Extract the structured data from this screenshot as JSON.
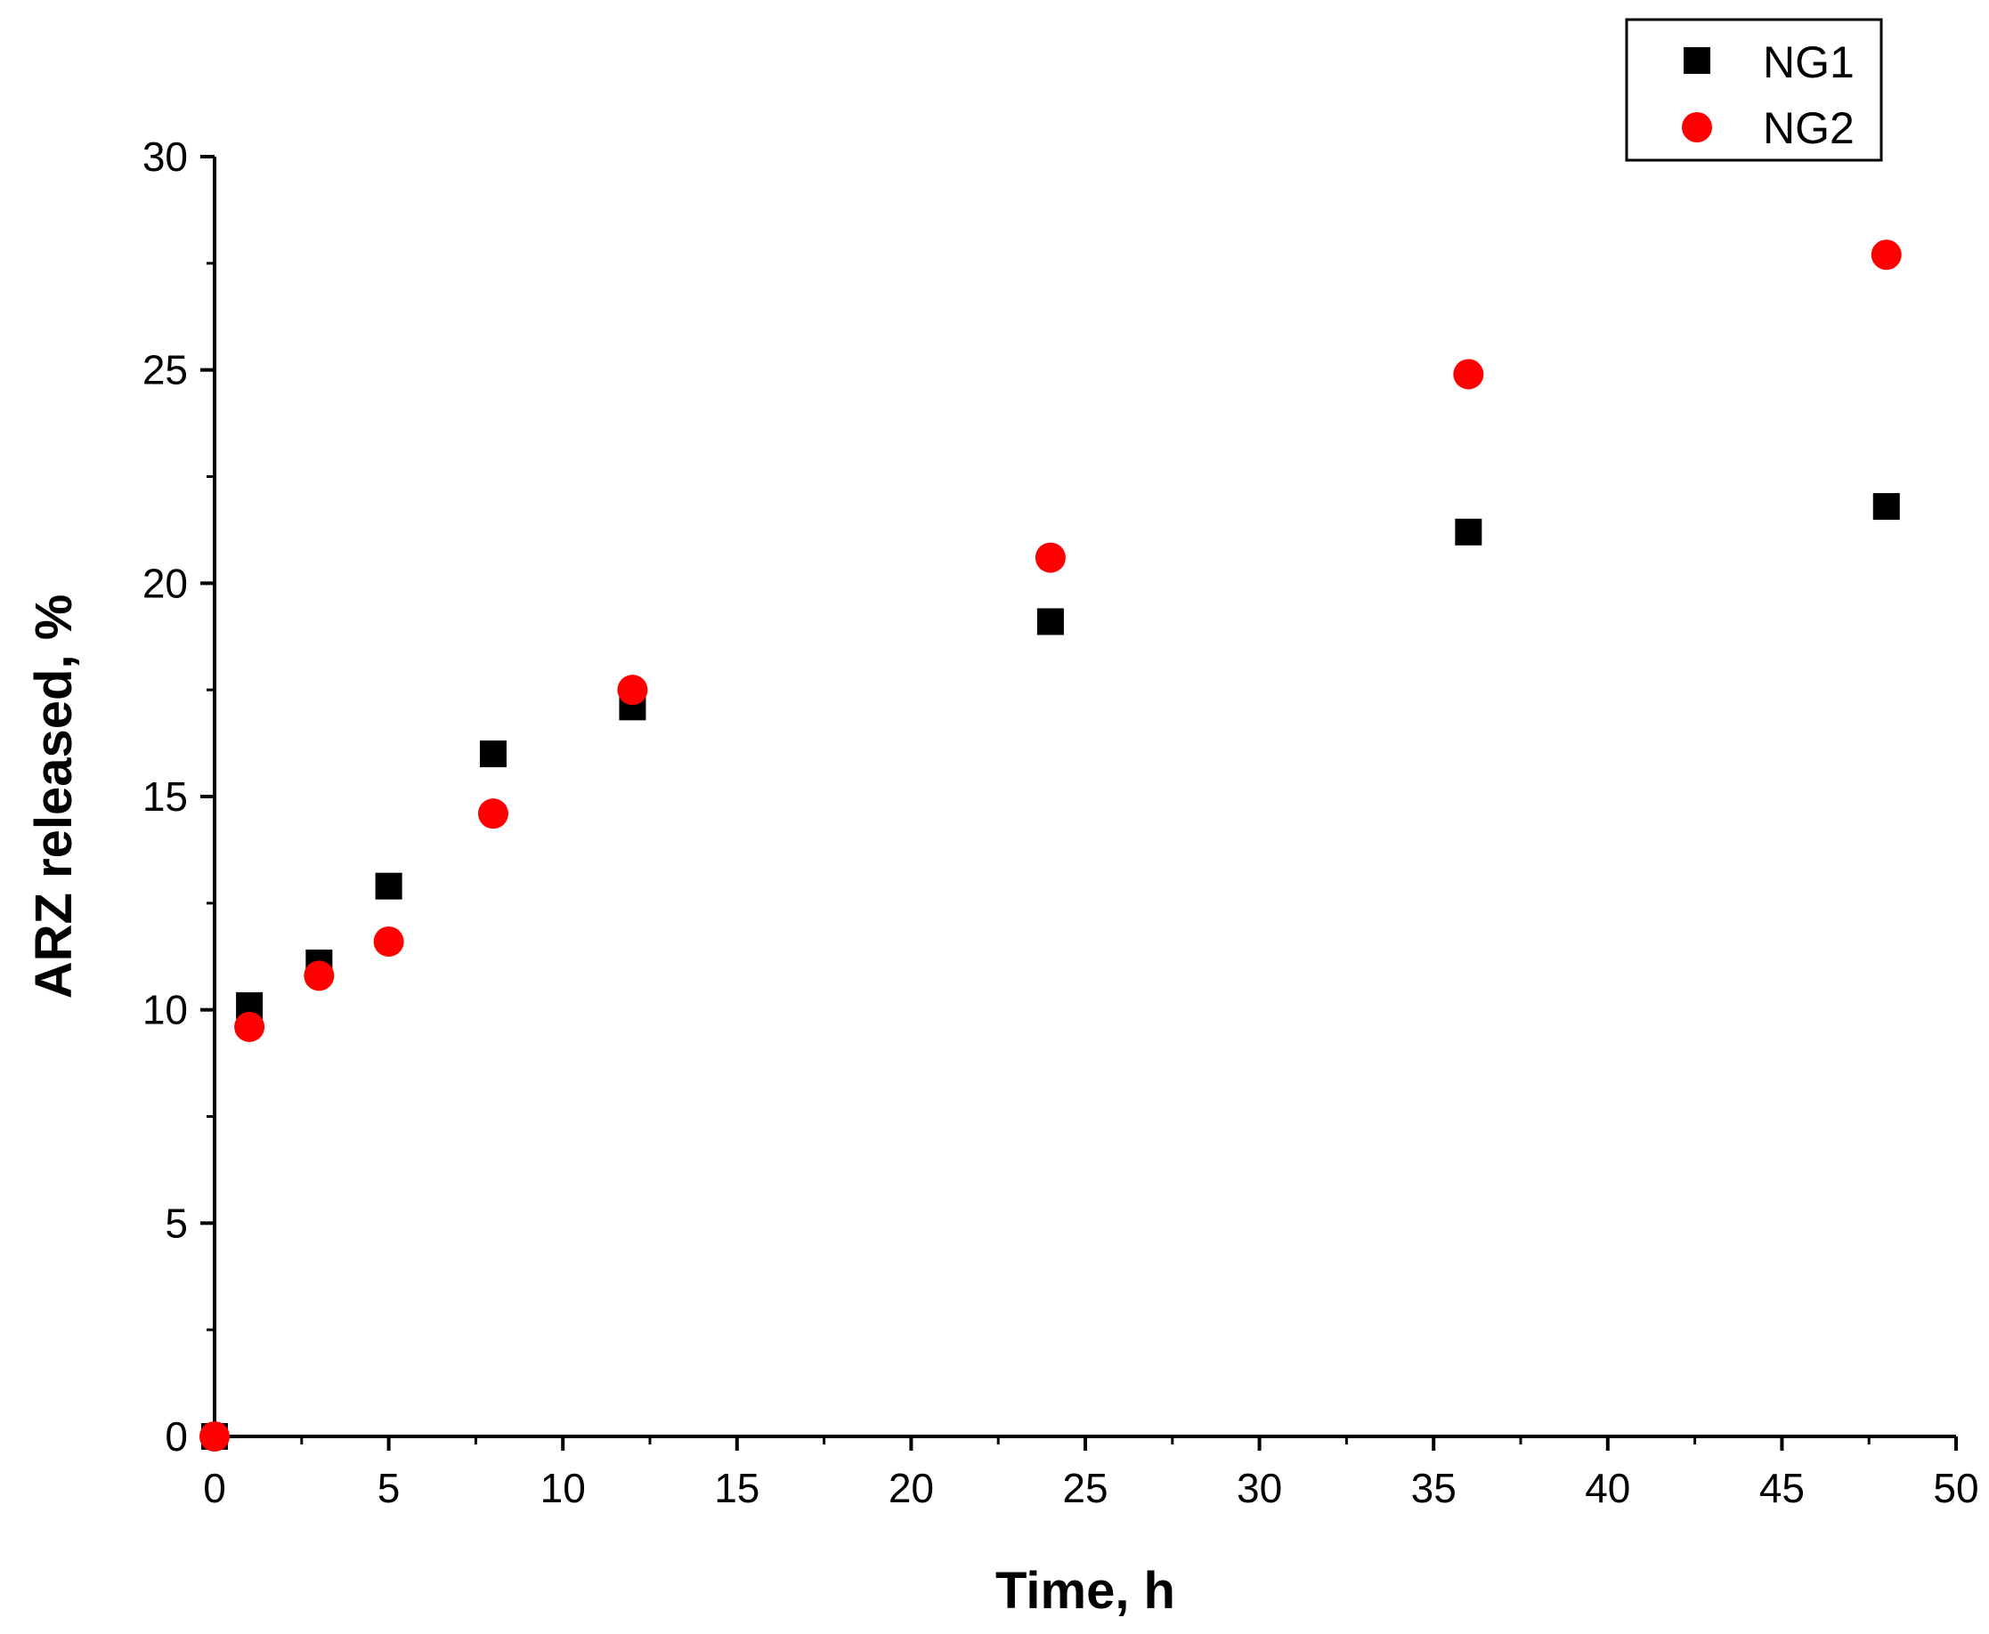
{
  "chart_data": {
    "type": "scatter",
    "title": "",
    "xlabel": "Time, h",
    "ylabel": "ARZ released, %",
    "xlim": [
      0,
      50
    ],
    "ylim": [
      0,
      30
    ],
    "x_ticks": [
      0,
      5,
      10,
      15,
      20,
      25,
      30,
      35,
      40,
      45,
      50
    ],
    "y_ticks": [
      0,
      5,
      10,
      15,
      20,
      25,
      30
    ],
    "grid": false,
    "legend_position": "top-right",
    "series": [
      {
        "name": "NG1",
        "marker": "square",
        "color": "#000000",
        "x": [
          0,
          1,
          3,
          5,
          8,
          12,
          24,
          36,
          48
        ],
        "y": [
          0,
          10.1,
          11.1,
          12.9,
          16.0,
          17.1,
          19.1,
          21.2,
          21.8
        ]
      },
      {
        "name": "NG2",
        "marker": "circle",
        "color": "#ff0000",
        "x": [
          0,
          1,
          3,
          5,
          8,
          12,
          24,
          36,
          48
        ],
        "y": [
          0,
          9.6,
          10.8,
          11.6,
          14.6,
          17.5,
          20.6,
          24.9,
          27.7
        ]
      }
    ]
  }
}
